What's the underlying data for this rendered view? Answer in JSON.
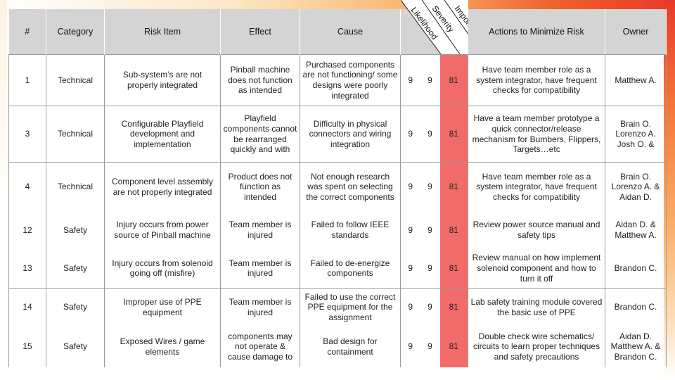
{
  "columns": {
    "id": "#",
    "category": "Category",
    "risk_item": "Risk Item",
    "effect": "Effect",
    "cause": "Cause",
    "likelihood": "Likelihood",
    "severity": "Severity",
    "importance": "Importance",
    "actions": "Actions to Minimize Risk",
    "owner": "Owner"
  },
  "rows": [
    {
      "id": "1",
      "category": "Technical",
      "risk_item": "Sub-system's are not properly integrated",
      "effect": "Pinball machine does not function as intended",
      "cause": "Purchased components are not functioning/ some designs were poorly integrated",
      "likelihood": "9",
      "severity": "9",
      "importance": "81",
      "actions": "Have team member role as a system integrator, have frequent checks for compatibility",
      "owner": "Matthew A."
    },
    {
      "id": "3",
      "category": "Technical",
      "risk_item": "Configurable Playfield development and implementation",
      "effect": "Playfield components cannot be rearranged quickly and with",
      "cause": "Difficulty in physical connectors and wiring integration",
      "likelihood": "9",
      "severity": "9",
      "importance": "81",
      "actions": "Have a team member prototype a quick connector/release mechanism for Bumbers, Flippers, Targets…etc",
      "owner": "Brain O. Lorenzo A. Josh O. &"
    },
    {
      "id": "4",
      "category": "Technical",
      "risk_item": "Component level assembly are not properly integrated",
      "effect": "Product does not function as intended",
      "cause": "Not enough research was spent on selecting the correct components",
      "likelihood": "9",
      "severity": "9",
      "importance": "81",
      "actions": "Have team member role as a system integrator, have frequent checks for compatibility",
      "owner": "Brain O. Lorenzo A. & Aidan D."
    },
    {
      "id": "12",
      "category": "Safety",
      "risk_item": "Injury occurs from power source of Pinball machine",
      "effect": "Team member is injured",
      "cause": "Failed to follow IEEE standards",
      "likelihood": "9",
      "severity": "9",
      "importance": "81",
      "actions": "Review power source manual and safety tips",
      "owner": "Aidan D. & Matthew A."
    },
    {
      "id": "13",
      "category": "Safety",
      "risk_item": "Injury occurs from solenoid going off (misfire)",
      "effect": "Team member is injured",
      "cause": "Failed to de-energize components",
      "likelihood": "9",
      "severity": "9",
      "importance": "81",
      "actions": "Review manual on how implement solenoid component and how to turn it off",
      "owner": "Brandon C."
    },
    {
      "id": "14",
      "category": "Safety",
      "risk_item": "Improper use of PPE equipment",
      "effect": "Team member is injured",
      "cause": "Failed to use the correct PPE equipment for the assignment",
      "likelihood": "9",
      "severity": "9",
      "importance": "81",
      "actions": "Lab safety training module covered the basic use of PPE",
      "owner": "Brandon C."
    },
    {
      "id": "15",
      "category": "Safety",
      "risk_item": "Exposed Wires / game elements",
      "effect": "components may not operate & cause damage to",
      "cause": "Bad design for containment",
      "likelihood": "9",
      "severity": "9",
      "importance": "81",
      "actions": "Double check wire schematics/ circuits to learn proper techniques and safety precautions",
      "owner": "Aidan D. Matthew A. & Brandon C."
    }
  ],
  "colors": {
    "importance_highlight": "#f26b6b",
    "header_bg": "#d4d4d4",
    "accent": "#e8392a"
  }
}
